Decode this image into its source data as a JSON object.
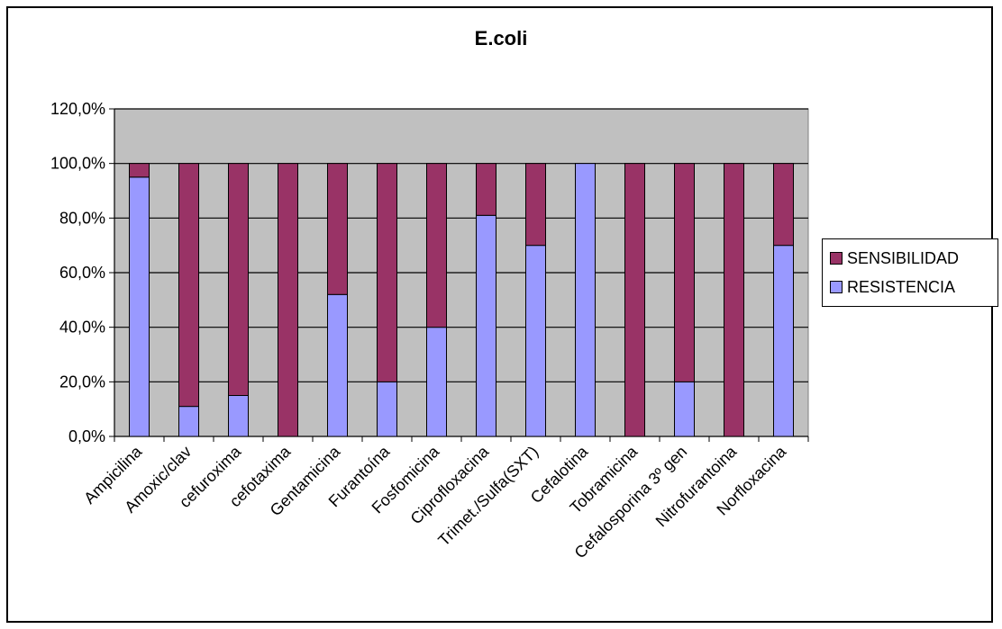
{
  "chart_data": {
    "type": "bar",
    "stacked": true,
    "title": "E.coli",
    "xlabel": "",
    "ylabel": "",
    "ylim": [
      0,
      120
    ],
    "yticks": [
      "0,0%",
      "20,0%",
      "40,0%",
      "60,0%",
      "80,0%",
      "100,0%",
      "120,0%"
    ],
    "categories": [
      "Ampicilina",
      "Amoxic/clav",
      "cefuroxima",
      "cefotaxima",
      "Gentamicina",
      "Furantoína",
      "Fosfomicina",
      "Ciprofloxacina",
      "Trimet./Sulfa(SXT)",
      "Cefalotina",
      "Tobramicina",
      "Cefalosporina 3º gen",
      "Nitrofurantoina",
      "Norfloxacina"
    ],
    "series": [
      {
        "name": "RESISTENCIA",
        "color": "#9999ff",
        "values": [
          95,
          11,
          15,
          0,
          52,
          20,
          40,
          81,
          70,
          100,
          0,
          20,
          0,
          70
        ]
      },
      {
        "name": "SENSIBILIDAD",
        "color": "#993366",
        "values": [
          5,
          89,
          85,
          100,
          48,
          80,
          60,
          19,
          30,
          0,
          100,
          80,
          100,
          30
        ]
      }
    ],
    "legend_position": "right",
    "plot_background": "#c0c0c0",
    "grid": true
  }
}
